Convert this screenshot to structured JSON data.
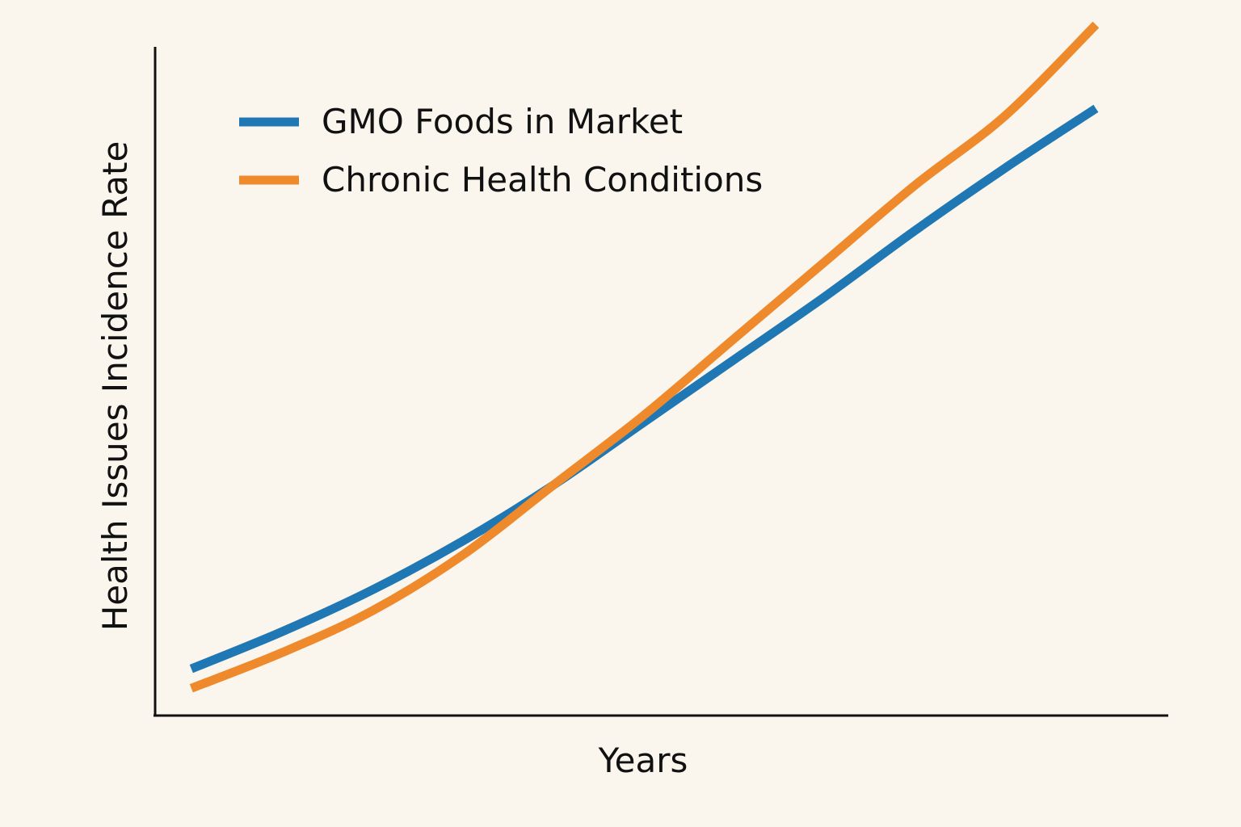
{
  "chart_data": {
    "type": "line",
    "title": "",
    "xlabel": "Years",
    "ylabel": "Health Issues Incidence Rate",
    "x": [
      0,
      0.1,
      0.2,
      0.3,
      0.4,
      0.5,
      0.6,
      0.7,
      0.8,
      0.9,
      1.0
    ],
    "xlim": [
      -0.04,
      1.08
    ],
    "ylim": [
      0,
      1
    ],
    "x_ticks_shown": false,
    "y_ticks_shown": false,
    "grid": false,
    "legend_position": "top-left",
    "series": [
      {
        "name": "GMO Foods in Market",
        "color": "#1f77b4",
        "values": [
          0.067,
          0.12,
          0.18,
          0.25,
          0.33,
          0.42,
          0.51,
          0.6,
          0.695,
          0.785,
          0.87
        ]
      },
      {
        "name": "Chronic Health Conditions",
        "color": "#ee8a2b",
        "values": [
          0.039,
          0.09,
          0.15,
          0.23,
          0.33,
          0.43,
          0.54,
          0.65,
          0.76,
          0.86,
          0.99
        ]
      }
    ]
  }
}
